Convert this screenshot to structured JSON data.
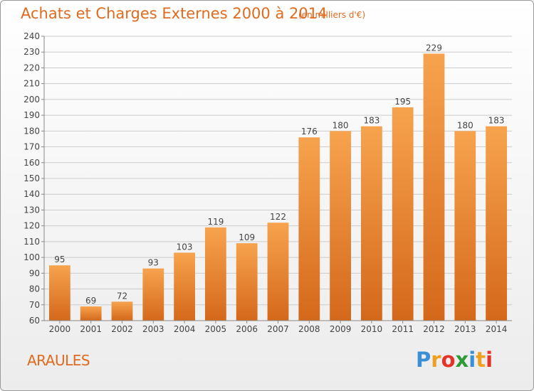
{
  "header": {
    "title": "Achats et Charges Externes 2000 à 2014",
    "subtitle": "(en milliers d'€)"
  },
  "footer": {
    "commune": "ARAULES",
    "logo_text": "Proxiti"
  },
  "colors": {
    "accent": "#e06a1e",
    "bar_top": "#f7a34e",
    "bar_bottom": "#d4681a",
    "grid": "#cccccc"
  },
  "chart_data": {
    "type": "bar",
    "title": "Achats et Charges Externes 2000 à 2014",
    "subtitle": "(en milliers d'€)",
    "categories": [
      "2000",
      "2001",
      "2002",
      "2003",
      "2004",
      "2005",
      "2006",
      "2007",
      "2008",
      "2009",
      "2010",
      "2011",
      "2012",
      "2013",
      "2014"
    ],
    "values": [
      95,
      69,
      72,
      93,
      103,
      119,
      109,
      122,
      176,
      180,
      183,
      195,
      229,
      180,
      183
    ],
    "ylim": [
      60,
      240
    ],
    "yticks": [
      60,
      70,
      80,
      90,
      100,
      110,
      120,
      130,
      140,
      150,
      160,
      170,
      180,
      190,
      200,
      210,
      220,
      230,
      240
    ],
    "grid": true,
    "xlabel": "",
    "ylabel": ""
  }
}
